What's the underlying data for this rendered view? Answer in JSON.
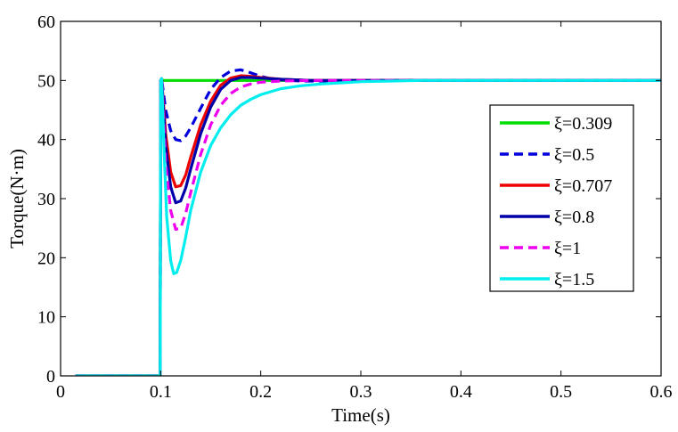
{
  "chart_data": {
    "type": "line",
    "title": "",
    "xlabel": "Time(s)",
    "ylabel": "Torque(N·m)",
    "xlim": [
      0,
      0.6
    ],
    "ylim": [
      0,
      60
    ],
    "xticks": [
      0,
      0.1,
      0.2,
      0.3,
      0.4,
      0.5,
      0.6
    ],
    "xtick_labels": [
      "0",
      "0.1",
      "0.2",
      "0.3",
      "0.4",
      "0.5",
      "0.6"
    ],
    "yticks": [
      0,
      10,
      20,
      30,
      40,
      50,
      60
    ],
    "ytick_labels": [
      "0",
      "10",
      "20",
      "30",
      "40",
      "50",
      "60"
    ],
    "grid": false,
    "legend_position": "right",
    "series": [
      {
        "name": "ξ=0.309",
        "color": "#00dd00",
        "dash": "solid",
        "x": [
          0.015,
          0.0995,
          0.1,
          0.6
        ],
        "y": [
          0,
          0,
          50,
          50
        ]
      },
      {
        "name": "ξ=0.5",
        "color": "#0000dd",
        "dash": "dashed",
        "x": [
          0.015,
          0.0995,
          0.1,
          0.101,
          0.105,
          0.11,
          0.115,
          0.12,
          0.125,
          0.13,
          0.14,
          0.15,
          0.16,
          0.17,
          0.18,
          0.19,
          0.2,
          0.21,
          0.22,
          0.24,
          0.26,
          0.28,
          0.3,
          0.6
        ],
        "y": [
          0,
          0,
          50,
          50.3,
          45,
          41.5,
          40,
          39.8,
          40.6,
          42,
          45.3,
          48.5,
          50.5,
          51.6,
          51.8,
          51.3,
          50.7,
          50.3,
          50.1,
          49.9,
          49.9,
          50,
          50,
          50
        ]
      },
      {
        "name": "ξ=0.707",
        "color": "#ee0000",
        "dash": "solid",
        "x": [
          0.015,
          0.0995,
          0.1,
          0.101,
          0.105,
          0.11,
          0.115,
          0.12,
          0.125,
          0.13,
          0.14,
          0.15,
          0.16,
          0.17,
          0.18,
          0.19,
          0.2,
          0.22,
          0.25,
          0.3,
          0.6
        ],
        "y": [
          0,
          0,
          50,
          50.3,
          41,
          34.5,
          32,
          32.2,
          34,
          37,
          42.5,
          46.5,
          49.2,
          50.4,
          50.8,
          50.7,
          50.5,
          50.2,
          50,
          50,
          50
        ]
      },
      {
        "name": "ξ=0.8",
        "color": "#0000aa",
        "dash": "solid",
        "x": [
          0.015,
          0.0995,
          0.1,
          0.101,
          0.105,
          0.11,
          0.115,
          0.12,
          0.125,
          0.13,
          0.14,
          0.15,
          0.16,
          0.17,
          0.18,
          0.19,
          0.2,
          0.22,
          0.25,
          0.3,
          0.6
        ],
        "y": [
          0,
          0,
          50,
          50.3,
          39,
          32,
          29.3,
          29.6,
          31.8,
          35,
          41,
          45.5,
          48.5,
          50,
          50.5,
          50.5,
          50.4,
          50.2,
          50,
          50,
          50
        ]
      },
      {
        "name": "ξ=1",
        "color": "#ee00ee",
        "dash": "dashed",
        "x": [
          0.015,
          0.0995,
          0.1,
          0.101,
          0.105,
          0.11,
          0.115,
          0.12,
          0.125,
          0.13,
          0.14,
          0.15,
          0.16,
          0.17,
          0.18,
          0.19,
          0.2,
          0.22,
          0.25,
          0.3,
          0.35,
          0.6
        ],
        "y": [
          0,
          0,
          50,
          50.3,
          36,
          28,
          24.8,
          25,
          27.5,
          31,
          37.5,
          42.5,
          45.8,
          47.8,
          48.9,
          49.4,
          49.7,
          49.9,
          50,
          50,
          50,
          50
        ]
      },
      {
        "name": "ξ=1.5",
        "color": "#00eeee",
        "dash": "solid",
        "x": [
          0.015,
          0.0995,
          0.1,
          0.101,
          0.103,
          0.106,
          0.11,
          0.113,
          0.116,
          0.12,
          0.125,
          0.13,
          0.14,
          0.15,
          0.16,
          0.17,
          0.18,
          0.19,
          0.2,
          0.22,
          0.24,
          0.26,
          0.28,
          0.3,
          0.33,
          0.36,
          0.6
        ],
        "y": [
          0,
          0,
          50,
          50.3,
          40,
          27,
          19.5,
          17.3,
          17.5,
          19.5,
          23.5,
          28,
          34.5,
          39,
          42,
          44.2,
          45.8,
          46.8,
          47.6,
          48.6,
          49.1,
          49.4,
          49.6,
          49.8,
          49.9,
          50,
          50
        ]
      }
    ]
  }
}
